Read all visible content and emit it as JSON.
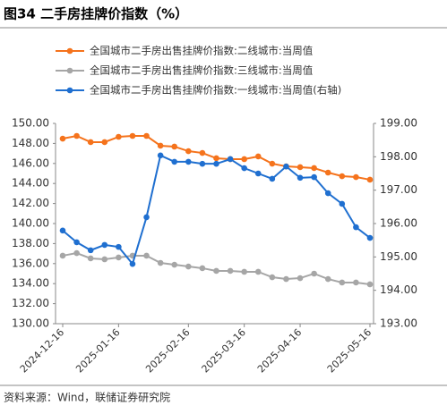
{
  "chart_data": {
    "type": "line",
    "title": "图34 二手房挂牌价指数（%）",
    "source": "资料来源：Wind，联储证券研究院",
    "categories": [
      "2024-12-16",
      null,
      null,
      null,
      "2025-01-16",
      null,
      null,
      null,
      null,
      "2025-02-16",
      null,
      null,
      null,
      "2025-03-16",
      null,
      null,
      null,
      "2025-04-16",
      null,
      null,
      null,
      null,
      "2025-05-16"
    ],
    "series": [
      {
        "name": "全国城市二手房出售挂牌价指数:二线城市:当周值",
        "color": "#f5731c",
        "values": [
          148.48,
          148.75,
          148.13,
          148.13,
          148.66,
          148.75,
          148.75,
          147.77,
          147.68,
          147.23,
          147.05,
          146.52,
          146.43,
          146.43,
          146.7,
          145.98,
          145.71,
          145.63,
          145.54,
          145.09,
          144.73,
          144.64,
          144.38
        ]
      },
      {
        "name": "全国城市二手房出售挂牌价指数:三线城市:当周值",
        "color": "#a6a6a6",
        "values": [
          136.79,
          137.05,
          136.52,
          136.43,
          136.61,
          136.79,
          136.79,
          136.07,
          135.89,
          135.71,
          135.54,
          135.27,
          135.27,
          135.18,
          135.18,
          134.64,
          134.46,
          134.55,
          135.0,
          134.46,
          134.11,
          134.11,
          133.93
        ]
      },
      {
        "name": "全国城市二手房出售挂牌价指数:一线城市:当周值(右轴)",
        "color": "#1f6fd0",
        "axis": "y2",
        "values": [
          195.79,
          195.44,
          195.2,
          195.36,
          195.3,
          194.79,
          196.19,
          198.04,
          197.85,
          197.85,
          197.79,
          197.79,
          197.93,
          197.66,
          197.5,
          197.34,
          197.71,
          197.37,
          197.39,
          196.91,
          196.59,
          195.89,
          195.57
        ]
      }
    ],
    "ylim": [
      130,
      150
    ],
    "yticks": [
      {
        "value": 130,
        "label": "130.00"
      },
      {
        "value": 132,
        "label": "132.00"
      },
      {
        "value": 134,
        "label": "134.00"
      },
      {
        "value": 136,
        "label": "136.00"
      },
      {
        "value": 138,
        "label": "138.00"
      },
      {
        "value": 140,
        "label": "140.00"
      },
      {
        "value": 142,
        "label": "142.00"
      },
      {
        "value": 144,
        "label": "144.00"
      },
      {
        "value": 146,
        "label": "146.00"
      },
      {
        "value": 148,
        "label": "148.00"
      },
      {
        "value": 150,
        "label": "150.00"
      }
    ],
    "y2lim": [
      193,
      199
    ],
    "y2ticks": [
      {
        "value": 193,
        "label": "193.00"
      },
      {
        "value": 194,
        "label": "194.00"
      },
      {
        "value": 195,
        "label": "195.00"
      },
      {
        "value": 196,
        "label": "196.00"
      },
      {
        "value": 197,
        "label": "197.00"
      },
      {
        "value": 198,
        "label": "198.00"
      },
      {
        "value": 199,
        "label": "199.00"
      }
    ],
    "legend": "top"
  }
}
